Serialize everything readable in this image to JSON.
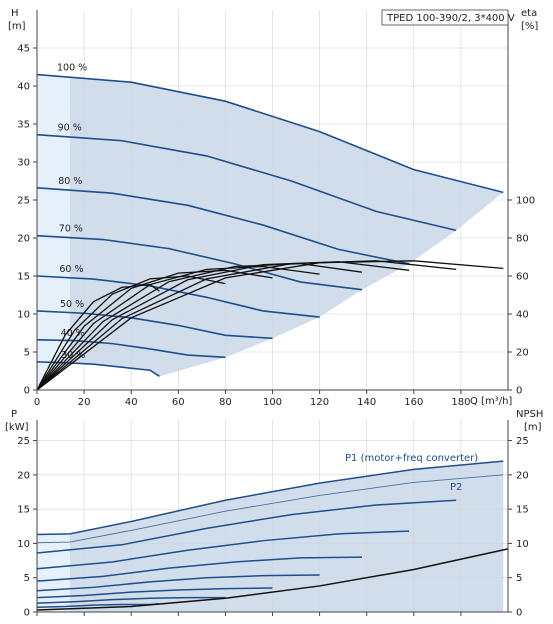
{
  "chart_data": [
    {
      "type": "line",
      "title": "TPED 100-390/2, 3*400 V",
      "xlabel": "Q [m³/h]",
      "ylabel_left_name": "H",
      "ylabel_left_unit": "[m]",
      "ylabel_right_name": "eta",
      "ylabel_right_unit": "[%]",
      "x_ticks": [
        "0",
        "20",
        "40",
        "60",
        "80",
        "100",
        "120",
        "140",
        "160",
        "180"
      ],
      "y_left_ticks": [
        "0",
        "5",
        "10",
        "15",
        "20",
        "25",
        "30",
        "35",
        "40",
        "45"
      ],
      "y_right_ticks": [
        "0",
        "20",
        "40",
        "60",
        "80",
        "100"
      ],
      "xlim": [
        0,
        200
      ],
      "ylim": [
        0,
        50
      ],
      "y_right_lim": [
        0,
        200
      ],
      "grid": true,
      "series": [
        {
          "name": "100 %",
          "points": [
            [
              0,
              41.5
            ],
            [
              40,
              40.5
            ],
            [
              80,
              38
            ],
            [
              120,
              34
            ],
            [
              160,
              29
            ],
            [
              198,
              26
            ]
          ]
        },
        {
          "name": "90 %",
          "points": [
            [
              0,
              33.6
            ],
            [
              36,
              32.8
            ],
            [
              72,
              30.8
            ],
            [
              108,
              27.5
            ],
            [
              144,
              23.5
            ],
            [
              178,
              21
            ]
          ]
        },
        {
          "name": "80 %",
          "points": [
            [
              0,
              26.6
            ],
            [
              32,
              25.9
            ],
            [
              64,
              24.3
            ],
            [
              96,
              21.7
            ],
            [
              128,
              18.5
            ],
            [
              158,
              16.6
            ]
          ]
        },
        {
          "name": "70 %",
          "points": [
            [
              0,
              20.3
            ],
            [
              28,
              19.8
            ],
            [
              56,
              18.6
            ],
            [
              84,
              16.6
            ],
            [
              112,
              14.2
            ],
            [
              138,
              13.2
            ]
          ]
        },
        {
          "name": "60 %",
          "points": [
            [
              0,
              15
            ],
            [
              24,
              14.6
            ],
            [
              48,
              13.7
            ],
            [
              72,
              12.2
            ],
            [
              96,
              10.4
            ],
            [
              120,
              9.6
            ]
          ]
        },
        {
          "name": "50 %",
          "points": [
            [
              0,
              10.4
            ],
            [
              20,
              10.1
            ],
            [
              40,
              9.5
            ],
            [
              60,
              8.5
            ],
            [
              80,
              7.2
            ],
            [
              100,
              6.8
            ]
          ]
        },
        {
          "name": "40 %",
          "points": [
            [
              0,
              6.6
            ],
            [
              16,
              6.5
            ],
            [
              32,
              6.1
            ],
            [
              48,
              5.4
            ],
            [
              64,
              4.6
            ],
            [
              80,
              4.3
            ]
          ]
        },
        {
          "name": "30 %",
          "points": [
            [
              0,
              3.7
            ],
            [
              12,
              3.6
            ],
            [
              24,
              3.4
            ],
            [
              36,
              3
            ],
            [
              48,
              2.6
            ],
            [
              52,
              1.8
            ]
          ]
        }
      ],
      "efficiency_series": [
        {
          "name": "eta 100 %",
          "points": [
            [
              0,
              0
            ],
            [
              40,
              38
            ],
            [
              80,
              59
            ],
            [
              120,
              67
            ],
            [
              160,
              68
            ],
            [
              198,
              64
            ]
          ]
        },
        {
          "name": "eta 90 %",
          "points": [
            [
              0,
              0
            ],
            [
              36,
              37.5
            ],
            [
              72,
              58.5
            ],
            [
              108,
              66.5
            ],
            [
              144,
              68
            ],
            [
              178,
              63.5
            ]
          ]
        },
        {
          "name": "eta 80 %",
          "points": [
            [
              0,
              0
            ],
            [
              32,
              37
            ],
            [
              64,
              58
            ],
            [
              96,
              66
            ],
            [
              128,
              67.5
            ],
            [
              158,
              63
            ]
          ]
        },
        {
          "name": "eta 70 %",
          "points": [
            [
              0,
              0
            ],
            [
              28,
              36
            ],
            [
              56,
              57
            ],
            [
              84,
              65
            ],
            [
              112,
              66.5
            ],
            [
              138,
              62
            ]
          ]
        },
        {
          "name": "eta 60 %",
          "points": [
            [
              0,
              0
            ],
            [
              24,
              35
            ],
            [
              48,
              55.5
            ],
            [
              72,
              63.5
            ],
            [
              96,
              65
            ],
            [
              120,
              61
            ]
          ]
        },
        {
          "name": "eta 50 %",
          "points": [
            [
              0,
              0
            ],
            [
              20,
              33.5
            ],
            [
              40,
              53.5
            ],
            [
              60,
              61.5
            ],
            [
              80,
              63
            ],
            [
              100,
              59
            ]
          ]
        },
        {
          "name": "eta 40 %",
          "points": [
            [
              0,
              0
            ],
            [
              16,
              31.5
            ],
            [
              32,
              50.5
            ],
            [
              48,
              58.5
            ],
            [
              64,
              60
            ],
            [
              80,
              56
            ]
          ]
        },
        {
          "name": "eta 30 %",
          "points": [
            [
              0,
              0
            ],
            [
              12,
              29
            ],
            [
              24,
              46.5
            ],
            [
              36,
              54
            ],
            [
              48,
              55.5
            ],
            [
              52,
              52
            ]
          ]
        }
      ]
    },
    {
      "type": "line",
      "title": "",
      "xlabel": "",
      "ylabel_left_name": "P",
      "ylabel_left_unit": "[kW]",
      "ylabel_right_name": "NPSH",
      "ylabel_right_unit": "[m]",
      "y_left_ticks": [
        "0",
        "5",
        "10",
        "15",
        "20",
        "25"
      ],
      "y_right_ticks": [
        "0",
        "5",
        "10",
        "15",
        "20",
        "25"
      ],
      "xlim": [
        0,
        200
      ],
      "ylim": [
        0,
        28
      ],
      "y_right_lim": [
        0,
        28
      ],
      "grid": true,
      "annotations": [
        "P1 (motor+freq converter)",
        "P2"
      ],
      "series": [
        {
          "name": "P1 (motor+freq converter)",
          "points": [
            [
              0,
              11.3
            ],
            [
              14,
              11.4
            ],
            [
              40,
              13.2
            ],
            [
              80,
              16.3
            ],
            [
              120,
              18.8
            ],
            [
              160,
              20.8
            ],
            [
              198,
              22
            ]
          ]
        },
        {
          "name": "P2",
          "points": [
            [
              0,
              10.1
            ],
            [
              14,
              10.2
            ],
            [
              40,
              11.9
            ],
            [
              80,
              14.7
            ],
            [
              120,
              17
            ],
            [
              160,
              18.9
            ],
            [
              198,
              20
            ]
          ]
        },
        {
          "name": "P1 90 %",
          "points": [
            [
              0,
              8.6
            ],
            [
              36,
              9.8
            ],
            [
              72,
              12.2
            ],
            [
              108,
              14.2
            ],
            [
              144,
              15.6
            ],
            [
              178,
              16.3
            ]
          ]
        },
        {
          "name": "P1 80 %",
          "points": [
            [
              0,
              6.3
            ],
            [
              32,
              7.3
            ],
            [
              64,
              9
            ],
            [
              96,
              10.4
            ],
            [
              128,
              11.4
            ],
            [
              158,
              11.8
            ]
          ]
        },
        {
          "name": "P1 70 %",
          "points": [
            [
              0,
              4.5
            ],
            [
              28,
              5.2
            ],
            [
              56,
              6.4
            ],
            [
              84,
              7.3
            ],
            [
              112,
              7.9
            ],
            [
              138,
              8
            ]
          ]
        },
        {
          "name": "P1 60 %",
          "points": [
            [
              0,
              3.1
            ],
            [
              24,
              3.6
            ],
            [
              48,
              4.4
            ],
            [
              72,
              5
            ],
            [
              96,
              5.3
            ],
            [
              120,
              5.4
            ]
          ]
        },
        {
          "name": "P1 50 %",
          "points": [
            [
              0,
              2.1
            ],
            [
              20,
              2.4
            ],
            [
              40,
              2.9
            ],
            [
              60,
              3.2
            ],
            [
              80,
              3.4
            ],
            [
              100,
              3.5
            ]
          ]
        },
        {
          "name": "P1 40 %",
          "points": [
            [
              0,
              1.3
            ],
            [
              16,
              1.5
            ],
            [
              32,
              1.8
            ],
            [
              48,
              2
            ],
            [
              64,
              2.1
            ],
            [
              80,
              2.1
            ]
          ]
        },
        {
          "name": "P1 30 %",
          "points": [
            [
              0,
              0.7
            ],
            [
              12,
              0.8
            ],
            [
              24,
              1
            ],
            [
              36,
              1.1
            ],
            [
              48,
              1.1
            ],
            [
              52,
              1.2
            ]
          ]
        },
        {
          "name": "NPSH",
          "points": [
            [
              0,
              0.3
            ],
            [
              40,
              0.8
            ],
            [
              80,
              2
            ],
            [
              120,
              3.8
            ],
            [
              160,
              6.2
            ],
            [
              200,
              9.2
            ]
          ]
        }
      ]
    }
  ]
}
